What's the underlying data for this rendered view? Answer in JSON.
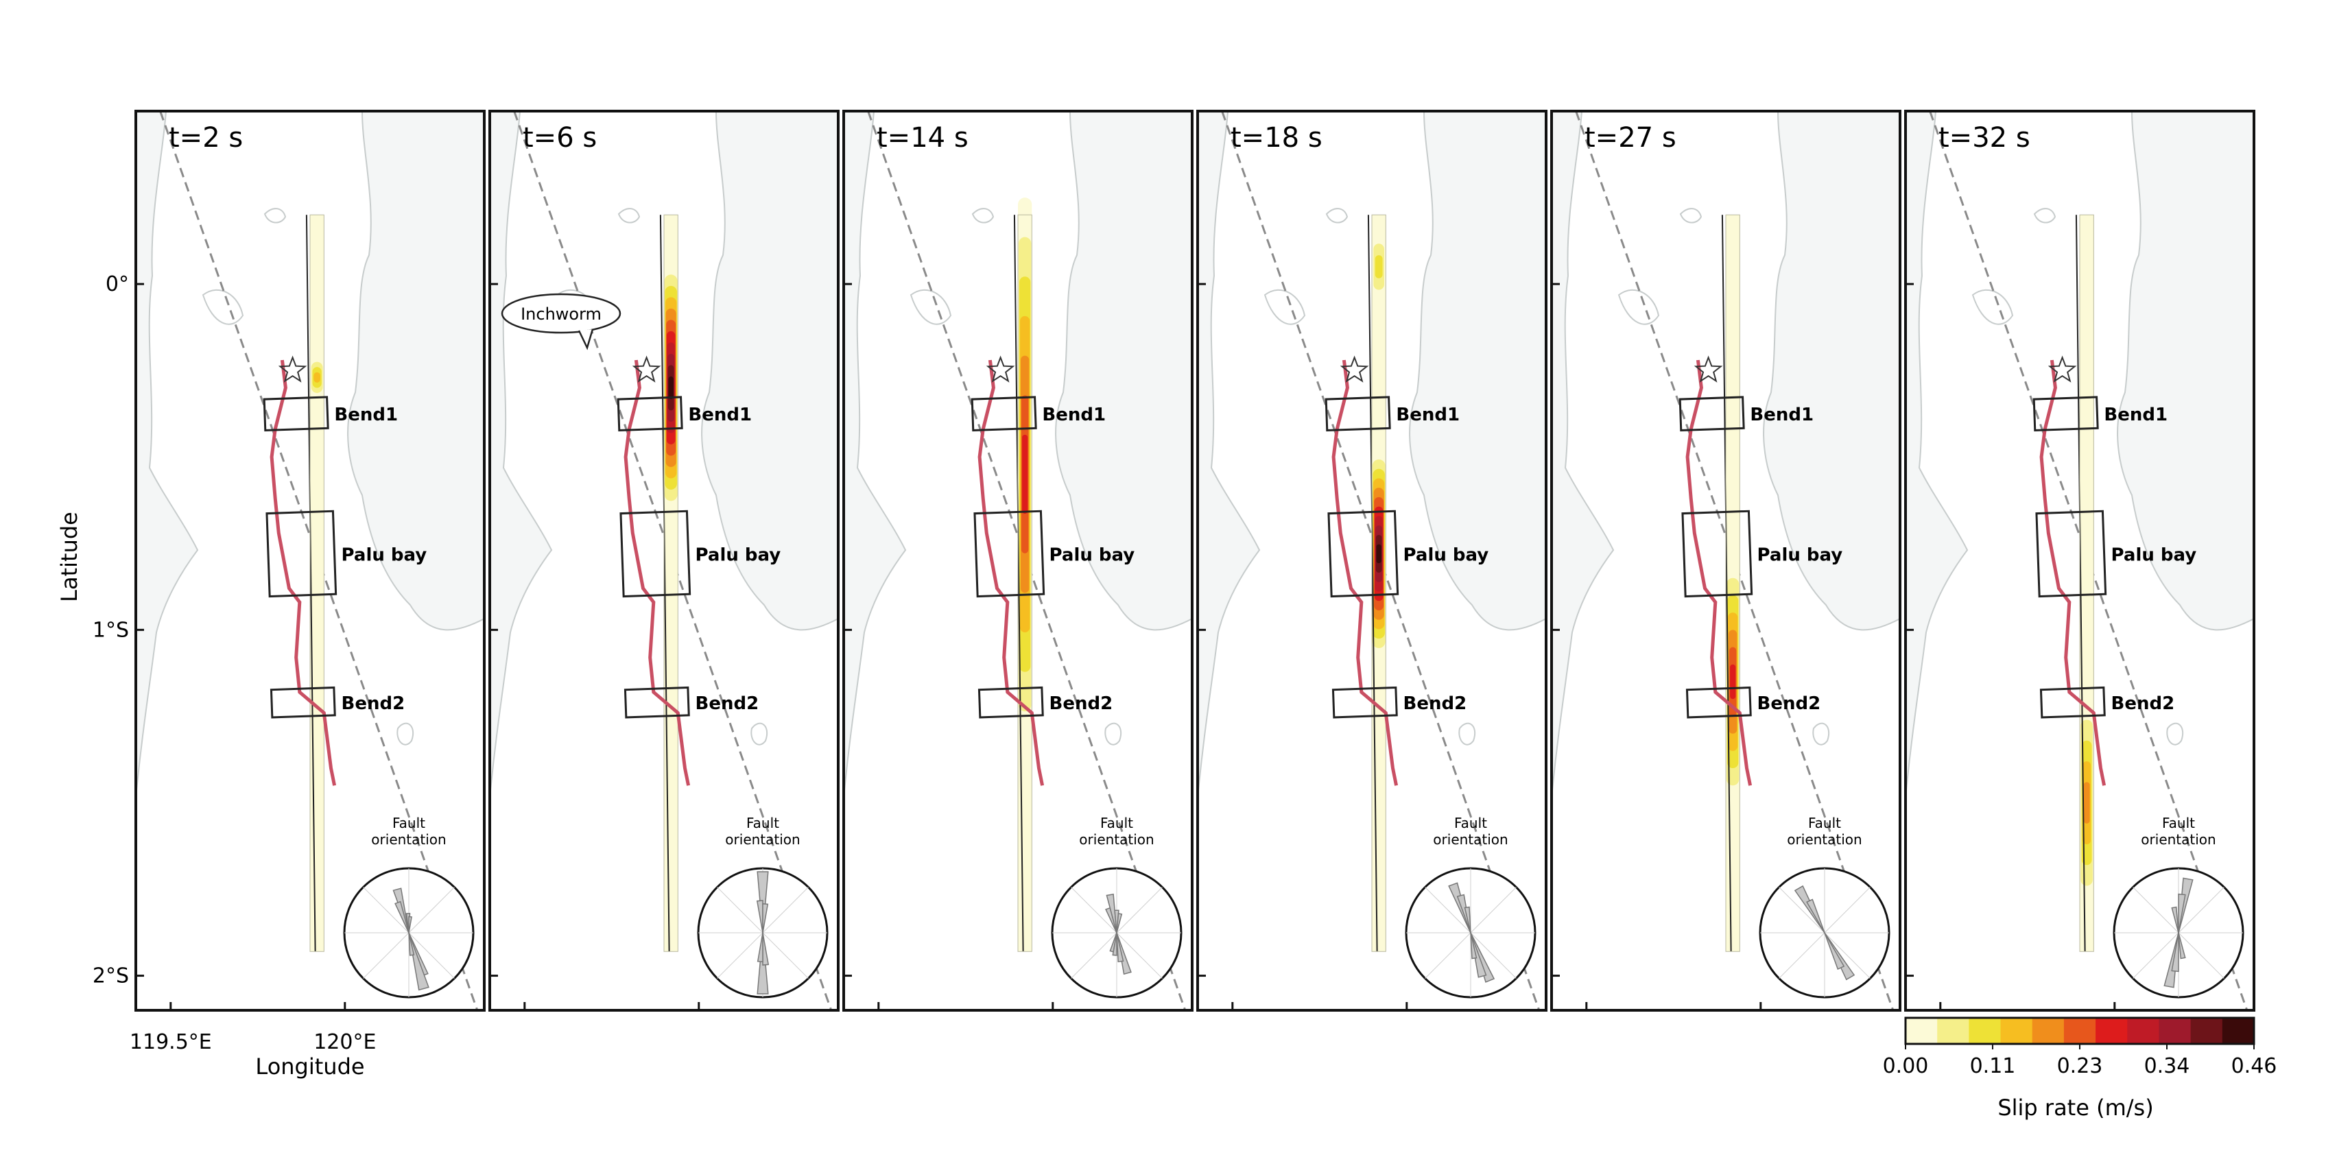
{
  "chart_data": {
    "type": "heatmap",
    "description_units": {
      "x": "degrees E",
      "y": "degrees latitude (negative = S)"
    },
    "xlabel": "Longitude",
    "ylabel": "Latitude",
    "xtick_labels": [
      "119.5°E",
      "120°E"
    ],
    "ytick_labels": [
      "0°",
      "1°S",
      "2°S"
    ],
    "x_ticks": [
      119.5,
      120.0
    ],
    "y_ticks": [
      0,
      -1,
      -2
    ],
    "xlim": [
      119.4,
      120.4
    ],
    "ylim": [
      -2.1,
      0.5
    ],
    "colorbar": {
      "label": "Slip rate (m/s)",
      "min": 0.0,
      "max": 0.46,
      "tick_labels": [
        "0.00",
        "0.11",
        "0.23",
        "0.34",
        "0.46"
      ],
      "colors": [
        "#fcfad7",
        "#f5ef8a",
        "#eee136",
        "#f6be21",
        "#f08e1c",
        "#e7571c",
        "#dd1c1c",
        "#bf1b26",
        "#9e1a2c",
        "#6d1419",
        "#3a0a0a"
      ]
    },
    "fault_trace": [
      [
        119.82,
        -0.22
      ],
      [
        119.83,
        -0.3
      ],
      [
        119.8,
        -0.42
      ],
      [
        119.79,
        -0.5
      ],
      [
        119.8,
        -0.62
      ],
      [
        119.81,
        -0.72
      ],
      [
        119.84,
        -0.88
      ],
      [
        119.87,
        -0.92
      ],
      [
        119.86,
        -1.08
      ],
      [
        119.87,
        -1.18
      ],
      [
        119.94,
        -1.24
      ],
      [
        119.96,
        -1.4
      ],
      [
        119.97,
        -1.45
      ]
    ],
    "regions": [
      {
        "label": "Bend1",
        "lon": [
          119.77,
          119.95
        ],
        "lat": [
          -0.33,
          -0.42
        ]
      },
      {
        "label": "Palu bay",
        "lon": [
          119.78,
          119.97
        ],
        "lat": [
          -0.66,
          -0.9
        ]
      },
      {
        "label": "Bend2",
        "lon": [
          119.79,
          119.97
        ],
        "lat": [
          -1.17,
          -1.25
        ]
      }
    ],
    "hypocenter": {
      "lon": 119.85,
      "lat": -0.25
    },
    "inset_label": "Fault\norientation",
    "speech_bubble": "Inchworm",
    "series": [
      {
        "name": "t=2 s",
        "slip_patches": [
          {
            "lat_center": -0.27,
            "half_length": 0.06,
            "peak_rate": 0.18
          }
        ],
        "rose": [
          [
            -15,
            0.7
          ],
          [
            -20,
            0.5
          ],
          [
            160,
            0.7
          ],
          [
            165,
            0.9
          ],
          [
            172,
            0.35
          ],
          [
            -2,
            0.3
          ],
          [
            5,
            0.25
          ]
        ]
      },
      {
        "name": "t=6 s",
        "slip_patches": [
          {
            "lat_center": -0.3,
            "half_length": 0.36,
            "peak_rate": 0.44
          }
        ],
        "rose": [
          [
            0,
            0.95
          ],
          [
            -5,
            0.5
          ],
          [
            5,
            0.45
          ],
          [
            180,
            0.95
          ],
          [
            175,
            0.5
          ],
          [
            185,
            0.45
          ]
        ]
      },
      {
        "name": "t=14 s",
        "slip_patches": [
          {
            "lat_center": -0.55,
            "half_length": 0.8,
            "peak_rate": 0.3
          }
        ],
        "rose": [
          [
            -20,
            0.4
          ],
          [
            -10,
            0.6
          ],
          [
            0,
            0.35
          ],
          [
            10,
            0.3
          ],
          [
            165,
            0.65
          ],
          [
            172,
            0.45
          ],
          [
            185,
            0.35
          ],
          [
            195,
            0.3
          ]
        ]
      },
      {
        "name": "t=18 s",
        "slip_patches": [
          {
            "lat_center": -0.78,
            "half_length": 0.3,
            "peak_rate": 0.46
          },
          {
            "lat_center": 0.05,
            "half_length": 0.1,
            "peak_rate": 0.12
          }
        ],
        "rose": [
          [
            -20,
            0.8
          ],
          [
            -15,
            0.6
          ],
          [
            -8,
            0.4
          ],
          [
            158,
            0.8
          ],
          [
            165,
            0.7
          ],
          [
            172,
            0.4
          ]
        ]
      },
      {
        "name": "t=27 s",
        "slip_patches": [
          {
            "lat_center": -1.15,
            "half_length": 0.35,
            "peak_rate": 0.3
          }
        ],
        "rose": [
          [
            -30,
            0.8
          ],
          [
            -25,
            0.55
          ],
          [
            150,
            0.8
          ],
          [
            155,
            0.6
          ]
        ]
      },
      {
        "name": "t=32 s",
        "slip_patches": [
          {
            "lat_center": -1.5,
            "half_length": 0.3,
            "peak_rate": 0.2
          }
        ],
        "rose": [
          [
            10,
            0.85
          ],
          [
            5,
            0.6
          ],
          [
            -10,
            0.4
          ],
          [
            190,
            0.85
          ],
          [
            185,
            0.6
          ],
          [
            170,
            0.4
          ]
        ]
      }
    ],
    "grid": false,
    "legend": "colorbar bottom-right"
  }
}
